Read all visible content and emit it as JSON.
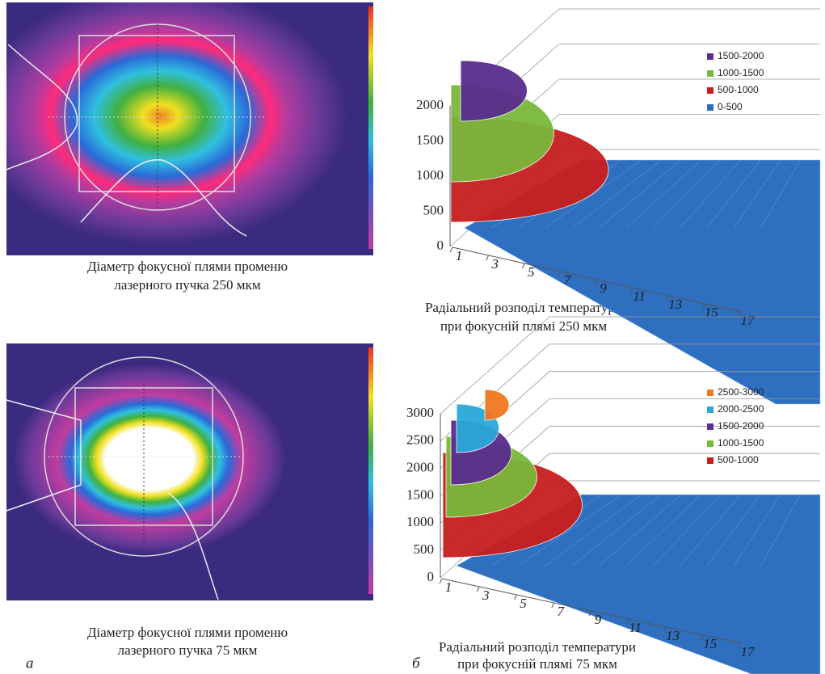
{
  "images": [
    {
      "caption": [
        "Діаметр фокусної плями променю",
        "лазерного пучка 250 мкм"
      ]
    },
    {
      "caption": [
        "Діаметр фокусної плями променю",
        "лазерного пучка 75 мкм"
      ]
    }
  ],
  "charts": [
    {
      "caption": [
        "Радіальний розподіл температури",
        "при фокусній плямі 250 мкм"
      ],
      "zlim": [
        0,
        2000
      ],
      "zticks": [
        0,
        500,
        1000,
        1500,
        2000
      ],
      "xticks": [
        1,
        3,
        5,
        7,
        9,
        11,
        13,
        15,
        17
      ],
      "legend": [
        {
          "name": "1500-2000",
          "color": "#5a2d8e"
        },
        {
          "name": "1000-1500",
          "color": "#7ab83a"
        },
        {
          "name": "500-1000",
          "color": "#c81e1e"
        },
        {
          "name": "0-500",
          "color": "#2e6fc0"
        }
      ]
    },
    {
      "caption": [
        "Радіальний розподіл температури",
        "при фокусній плямі 75 мкм"
      ],
      "zlim": [
        0,
        3000
      ],
      "zticks": [
        0,
        500,
        1000,
        1500,
        2000,
        2500,
        3000
      ],
      "xticks": [
        1,
        3,
        5,
        7,
        9,
        11,
        13,
        15,
        17
      ],
      "legend": [
        {
          "name": "2500-3000",
          "color": "#f07820"
        },
        {
          "name": "2000-2500",
          "color": "#2aa8d8"
        },
        {
          "name": "1500-2000",
          "color": "#5a2d8e"
        },
        {
          "name": "1000-1500",
          "color": "#7ab83a"
        },
        {
          "name": "500-1000",
          "color": "#c81e1e"
        }
      ]
    }
  ],
  "panel_labels": [
    "а",
    "б"
  ]
}
